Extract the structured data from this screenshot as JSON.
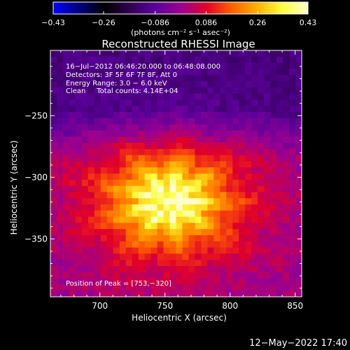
{
  "chart_data": {
    "type": "heatmap",
    "title": "Reconstructed RHESSI Image",
    "xlabel": "Heliocentric X (arcsec)",
    "ylabel": "Heliocentric Y (arcsec)",
    "xlim": [
      662,
      855
    ],
    "ylim": [
      -397,
      -197
    ],
    "x_ticks": [
      {
        "value": 700,
        "label": "700"
      },
      {
        "value": 750,
        "label": "750"
      },
      {
        "value": 800,
        "label": "800"
      },
      {
        "value": 850,
        "label": "850"
      }
    ],
    "y_ticks": [
      {
        "value": -250,
        "label": "−250"
      },
      {
        "value": -300,
        "label": "−300"
      },
      {
        "value": -350,
        "label": "−350"
      }
    ],
    "colorbar": {
      "unit_label": "(photons cm⁻² s⁻¹ asec⁻²)",
      "range": [
        -0.43,
        0.43
      ],
      "ticks": [
        {
          "value": -0.43,
          "label": "−0.43"
        },
        {
          "value": -0.26,
          "label": "−0.26"
        },
        {
          "value": -0.086,
          "label": "−0.086"
        },
        {
          "value": 0.086,
          "label": "0.086"
        },
        {
          "value": 0.26,
          "label": "0.26"
        },
        {
          "value": 0.43,
          "label": "0.43"
        }
      ],
      "colors": [
        "#0000ff",
        "#000080",
        "#000000",
        "#300050",
        "#5a009a",
        "#9a0090",
        "#e0002a",
        "#ff6000",
        "#ffb000",
        "#ffff40",
        "#ffffd0"
      ]
    },
    "annotations": [
      "16−Jul−2012 06:46:20.000 to 06:48:08.000",
      "Detectors: 3F 5F 6F 7F 8F, Att 0",
      "Energy Range: 3.0 − 6.0 keV",
      "Clean     Total counts: 4.14E+04"
    ],
    "peak": {
      "x": 753,
      "y": -320,
      "label": "Position of Peak = [753,−320]"
    },
    "source": {
      "center_x": 753,
      "center_y": -320,
      "peak_value": 0.43
    }
  },
  "footer_timestamp": "12−May−2022 17:40"
}
